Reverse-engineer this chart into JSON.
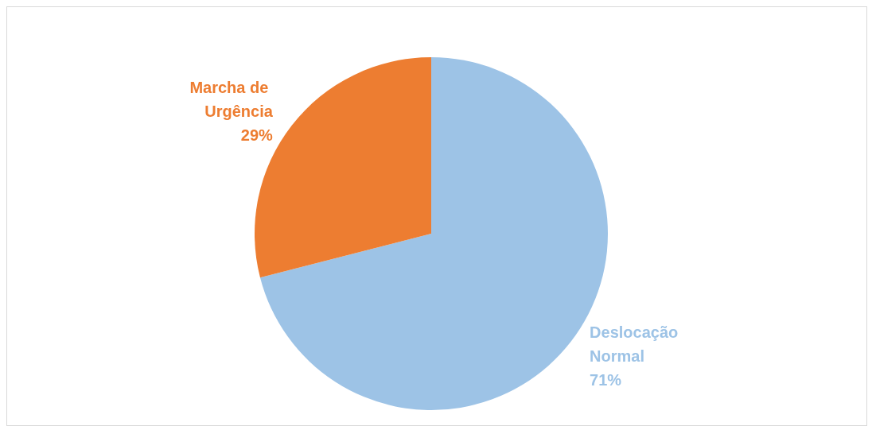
{
  "chart_data": {
    "type": "pie",
    "categories": [
      "Deslocação Normal",
      "Marcha de Urgência"
    ],
    "values": [
      71,
      29
    ],
    "colors": [
      "#9dc3e6",
      "#ed7d31"
    ],
    "value_labels": [
      "71%",
      "29%"
    ],
    "legend": false
  }
}
